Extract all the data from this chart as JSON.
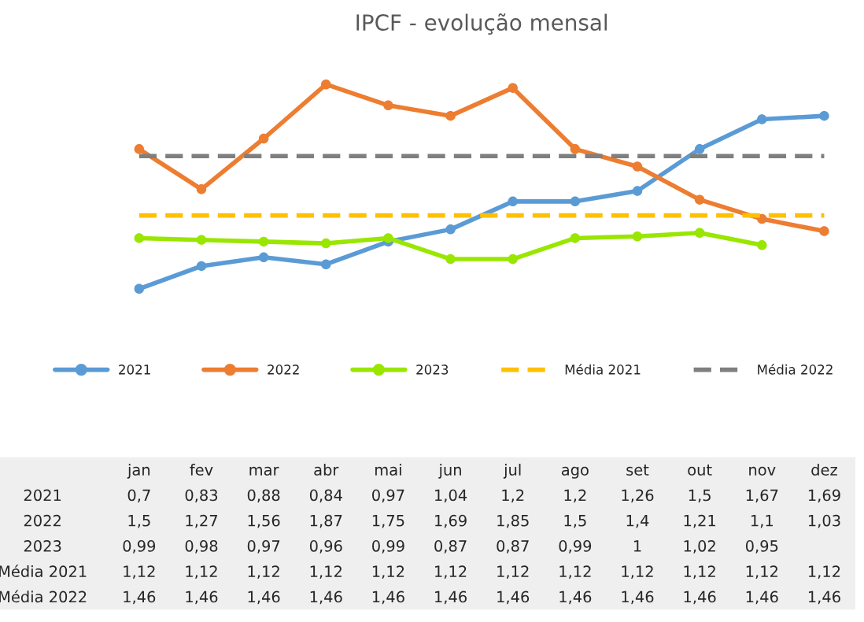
{
  "chart_data": {
    "type": "line",
    "title": "IPCF - evolução mensal",
    "categories": [
      "jan",
      "fev",
      "mar",
      "abr",
      "mai",
      "jun",
      "jul",
      "ago",
      "set",
      "out",
      "nov",
      "dez"
    ],
    "series": [
      {
        "name": "2021",
        "color": "#5b9bd5",
        "marker": "circle",
        "line_style": "solid",
        "values": [
          0.7,
          0.83,
          0.88,
          0.84,
          0.97,
          1.04,
          1.2,
          1.2,
          1.26,
          1.5,
          1.67,
          1.69
        ],
        "value_labels": [
          "0,7",
          "0,83",
          "0,88",
          "0,84",
          "0,97",
          "1,04",
          "1,2",
          "1,2",
          "1,26",
          "1,5",
          "1,67",
          "1,69"
        ]
      },
      {
        "name": "2022",
        "color": "#ed7d31",
        "marker": "circle",
        "line_style": "solid",
        "values": [
          1.5,
          1.27,
          1.56,
          1.87,
          1.75,
          1.69,
          1.85,
          1.5,
          1.4,
          1.21,
          1.1,
          1.03
        ],
        "value_labels": [
          "1,5",
          "1,27",
          "1,56",
          "1,87",
          "1,75",
          "1,69",
          "1,85",
          "1,5",
          "1,4",
          "1,21",
          "1,1",
          "1,03"
        ]
      },
      {
        "name": "2023",
        "color": "#99e600",
        "marker": "circle",
        "line_style": "solid",
        "values": [
          0.99,
          0.98,
          0.97,
          0.96,
          0.99,
          0.87,
          0.87,
          0.99,
          1,
          1.02,
          0.95,
          null
        ],
        "value_labels": [
          "0,99",
          "0,98",
          "0,97",
          "0,96",
          "0,99",
          "0,87",
          "0,87",
          "0,99",
          "1",
          "1,02",
          "0,95",
          null
        ]
      },
      {
        "name": "Média 2021",
        "color": "#ffc000",
        "marker": "none",
        "line_style": "dashed",
        "values": [
          1.12,
          1.12,
          1.12,
          1.12,
          1.12,
          1.12,
          1.12,
          1.12,
          1.12,
          1.12,
          1.12,
          1.12
        ],
        "value_labels": [
          "1,12",
          "1,12",
          "1,12",
          "1,12",
          "1,12",
          "1,12",
          "1,12",
          "1,12",
          "1,12",
          "1,12",
          "1,12",
          "1,12"
        ]
      },
      {
        "name": "Média 2022",
        "color": "#7f7f7f",
        "marker": "none",
        "line_style": "dashed",
        "values": [
          1.46,
          1.46,
          1.46,
          1.46,
          1.46,
          1.46,
          1.46,
          1.46,
          1.46,
          1.46,
          1.46,
          1.46
        ],
        "value_labels": [
          "1,46",
          "1,46",
          "1,46",
          "1,46",
          "1,46",
          "1,46",
          "1,46",
          "1,46",
          "1,46",
          "1,46",
          "1,46",
          "1,46"
        ]
      }
    ],
    "legend": "bottom"
  }
}
